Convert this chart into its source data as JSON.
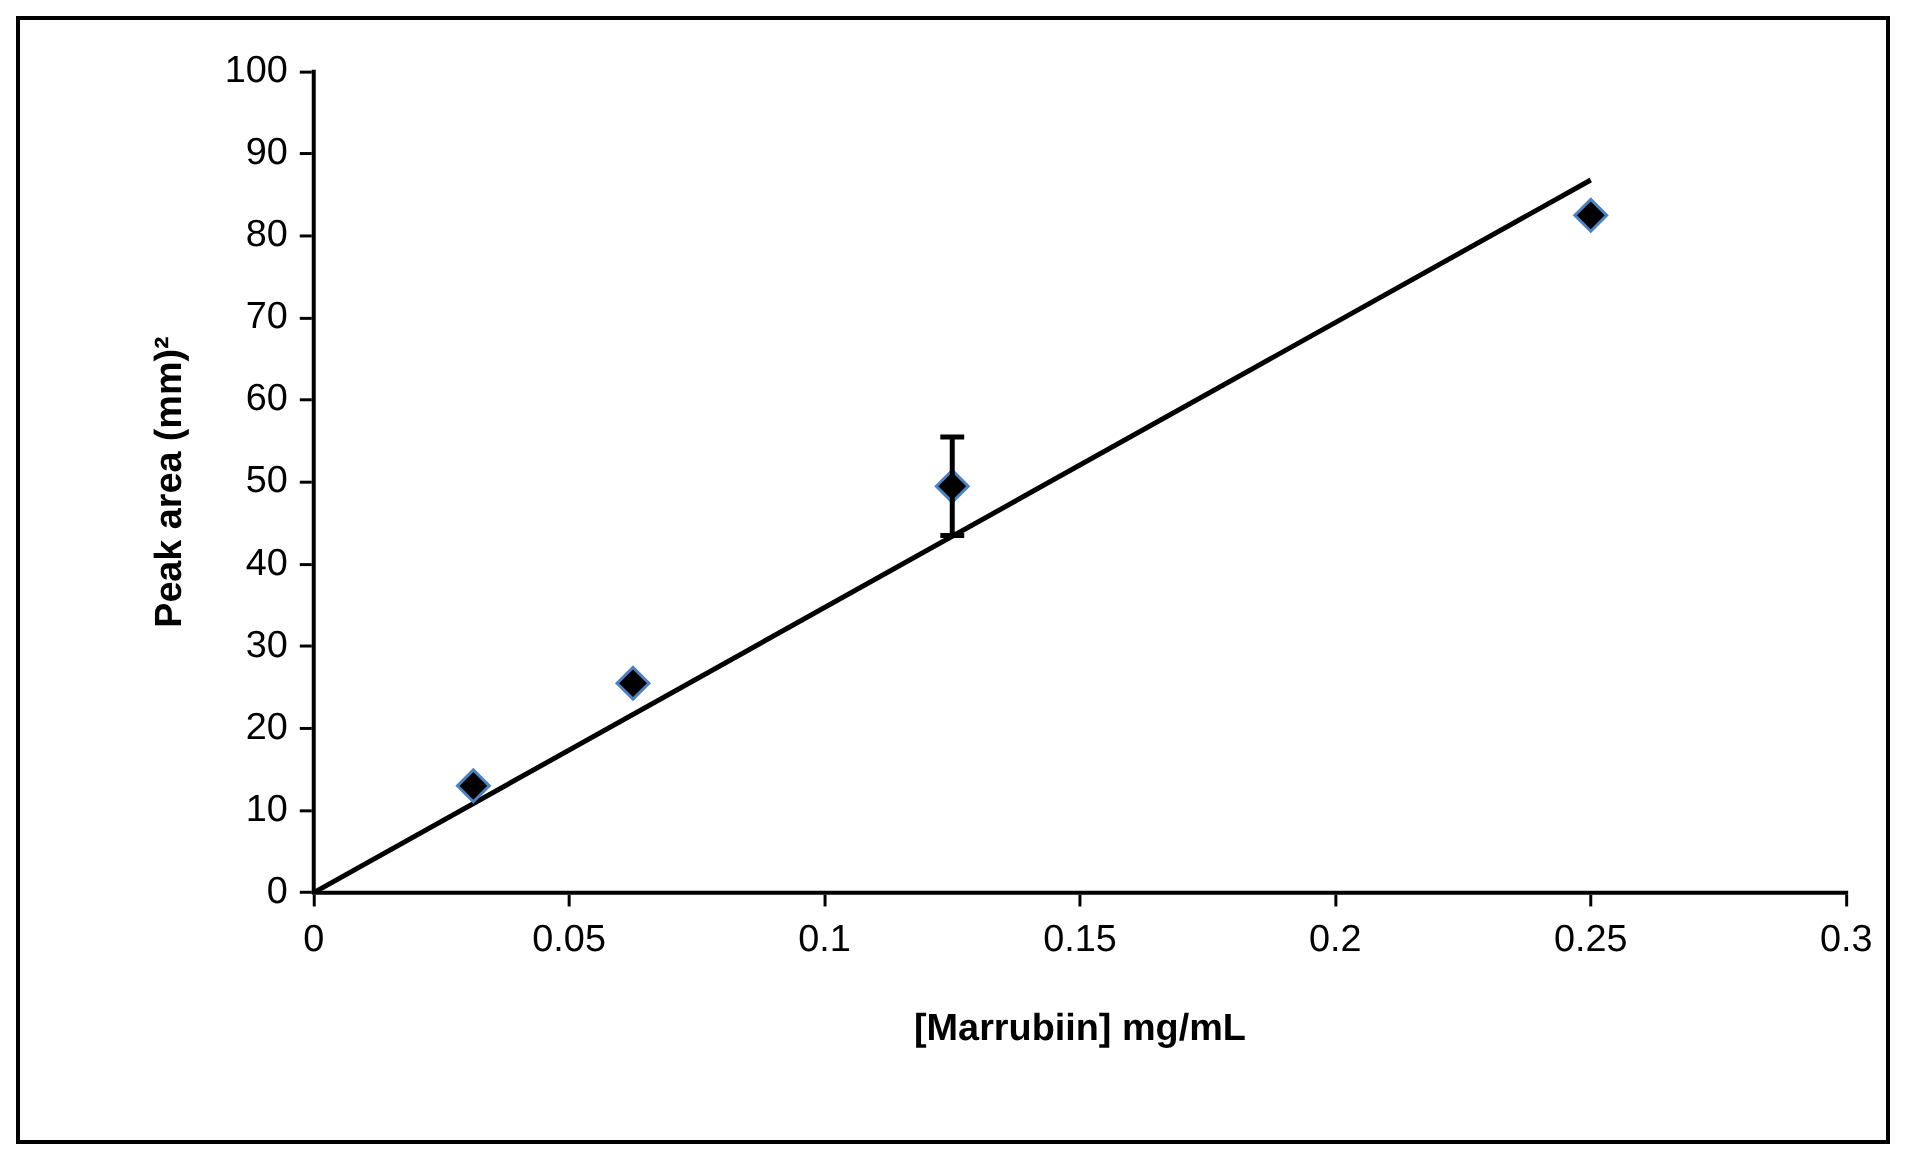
{
  "chart_data": {
    "type": "scatter",
    "xlabel": "[Marrubiin] mg/mL",
    "ylabel": "Peak area (mm)²",
    "xlim": [
      0,
      0.3
    ],
    "xticks": [
      0,
      0.05,
      0.1,
      0.15,
      0.2,
      0.25,
      0.3
    ],
    "ylim": [
      0,
      100
    ],
    "yticks": [
      0,
      10,
      20,
      30,
      40,
      50,
      60,
      70,
      80,
      90,
      100
    ],
    "grid": false,
    "legend": false,
    "series": [
      {
        "marker": "diamond",
        "color": "#000000",
        "x": [
          0.03125,
          0.0625,
          0.125,
          0.25
        ],
        "values": [
          13,
          25.5,
          49.5,
          82.5
        ],
        "errors": [
          null,
          null,
          [
            43.5,
            55.5
          ],
          null
        ]
      },
      {
        "type": "line",
        "marker": "none",
        "color": "#000000",
        "x": [
          0,
          0.25
        ],
        "values": [
          0,
          86.8
        ]
      }
    ]
  }
}
